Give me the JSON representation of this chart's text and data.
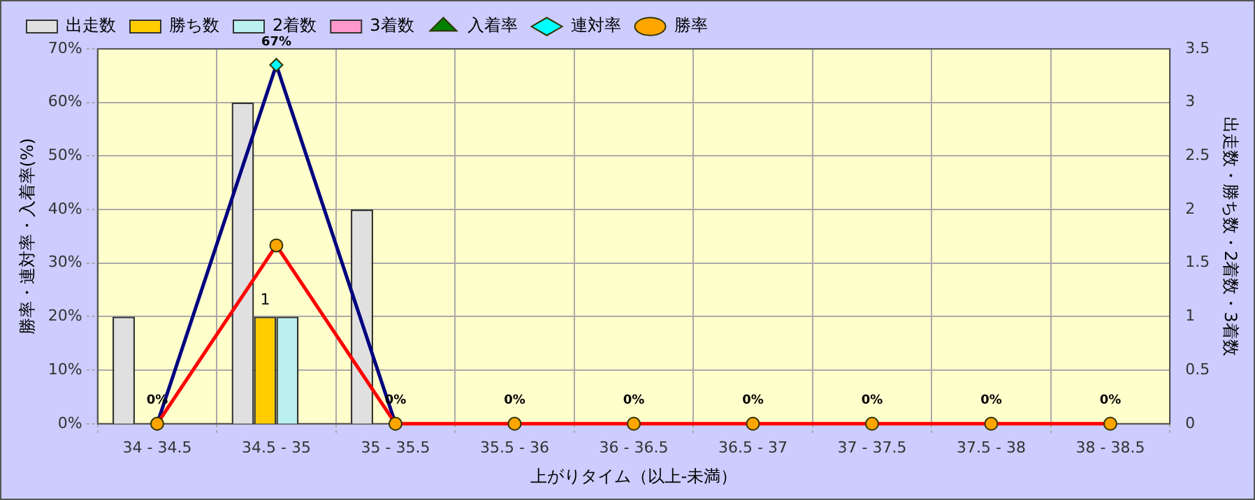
{
  "chart_data": {
    "type": "bar",
    "xlabel": "上がりタイム（以上-未満）",
    "ylabel": "勝率・連対率・入着率(%)",
    "y2label": "出走数・勝ち数・2着数・3着数",
    "categories": [
      "34 - 34.5",
      "34.5 - 35",
      "35 - 35.5",
      "35.5 - 36",
      "36 - 36.5",
      "36.5 - 37",
      "37 - 37.5",
      "37.5 - 38",
      "38 - 38.5"
    ],
    "series": [
      {
        "name": "出走数",
        "axis": "y2",
        "color": "#e0e0e0",
        "values": [
          1,
          3,
          2,
          0,
          0,
          0,
          0,
          0,
          0
        ]
      },
      {
        "name": "勝ち数",
        "axis": "y2",
        "color": "#ffcc00",
        "values": [
          0,
          1,
          0,
          0,
          0,
          0,
          0,
          0,
          0
        ],
        "value_labels": [
          null,
          "1",
          null,
          null,
          null,
          null,
          null,
          null,
          null
        ]
      },
      {
        "name": "2着数",
        "axis": "y2",
        "color": "#bbf0f0",
        "values": [
          0,
          1,
          0,
          0,
          0,
          0,
          0,
          0,
          0
        ]
      },
      {
        "name": "3着数",
        "axis": "y2",
        "color": "#ff99cc",
        "values": [
          0,
          0,
          0,
          0,
          0,
          0,
          0,
          0,
          0
        ]
      },
      {
        "name": "入着率",
        "type": "line",
        "color": "#008000",
        "marker": "triangle",
        "values": [
          null,
          null,
          null,
          null,
          null,
          null,
          null,
          null,
          null
        ]
      },
      {
        "name": "連対率",
        "type": "line",
        "color": "#000080",
        "marker": "diamond",
        "values": [
          0,
          67,
          0,
          null,
          null,
          null,
          null,
          null,
          null
        ],
        "value_labels": [
          "0%",
          "67%",
          "0%",
          "0%",
          "0%",
          "0%",
          "0%",
          "0%",
          "0%"
        ]
      },
      {
        "name": "勝率",
        "type": "line",
        "color": "#ff0000",
        "marker": "circle",
        "values": [
          0,
          33.3,
          0,
          0,
          0,
          0,
          0,
          0,
          0
        ]
      }
    ],
    "ylim": [
      0,
      70
    ],
    "yticks": [
      {
        "value": 0,
        "label": "0%"
      },
      {
        "value": 10,
        "label": "10%"
      },
      {
        "value": 20,
        "label": "20%"
      },
      {
        "value": 30,
        "label": "30%"
      },
      {
        "value": 40,
        "label": "40%"
      },
      {
        "value": 50,
        "label": "50%"
      },
      {
        "value": 60,
        "label": "60%"
      },
      {
        "value": 70,
        "label": "70%"
      }
    ],
    "y2lim": [
      0,
      3.5
    ],
    "y2ticks": [
      0,
      0.5,
      1,
      1.5,
      2,
      2.5,
      3,
      3.5
    ],
    "grid": true,
    "legend": "top left"
  }
}
